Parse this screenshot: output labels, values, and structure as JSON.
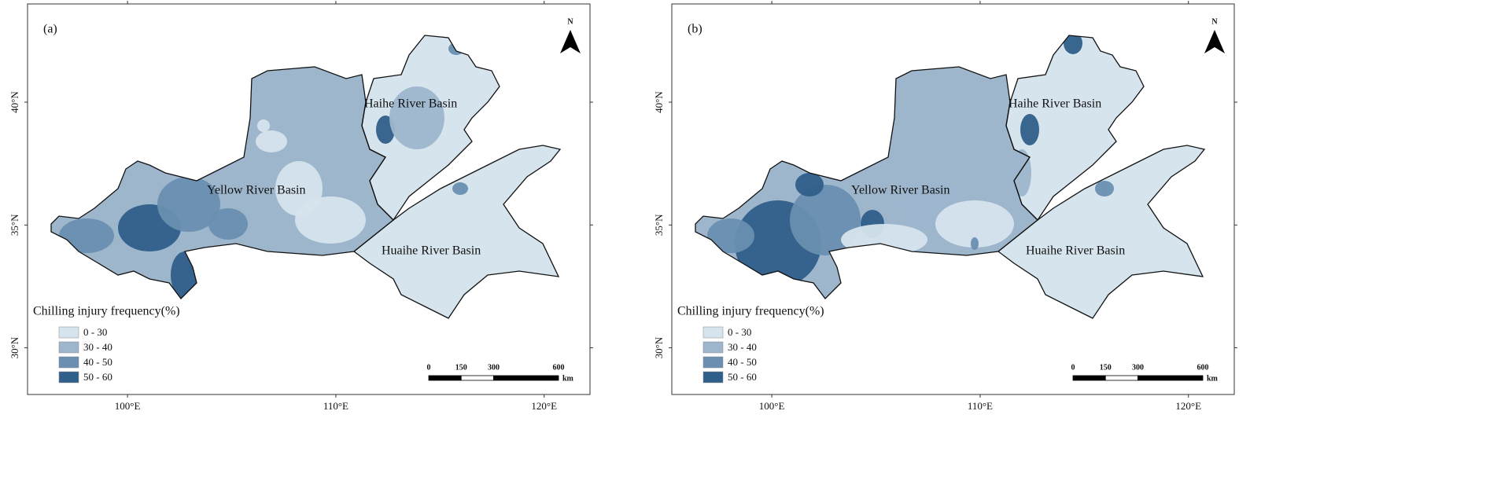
{
  "panels": [
    {
      "label": "(a)",
      "north": "N",
      "regions": [
        {
          "name": "Yellow River Basin"
        },
        {
          "name": "Haihe River Basin"
        },
        {
          "name": "Huaihe River Basin"
        }
      ],
      "legend": {
        "title": "Chilling injury frequency(%)",
        "items": [
          {
            "label": "0 - 30",
            "color": "#d6e4ed"
          },
          {
            "label": "30 - 40",
            "color": "#9db6cc"
          },
          {
            "label": "40 - 50",
            "color": "#6a8fb0"
          },
          {
            "label": "50 - 60",
            "color": "#2f5f8a"
          }
        ]
      },
      "scale": {
        "ticks": [
          0,
          150,
          300,
          600
        ],
        "unit": "km"
      },
      "xlim": [
        95.2,
        122.2
      ],
      "ylim": [
        28.1,
        44
      ],
      "lat_ticks": [
        {
          "value": 40,
          "label": "40°N"
        },
        {
          "value": 35,
          "label": "35°N"
        },
        {
          "value": 30,
          "label": "30°N"
        }
      ],
      "lon_ticks": [
        {
          "value": 100,
          "label": "100°E"
        },
        {
          "value": 110,
          "label": "110°E"
        },
        {
          "value": 120,
          "label": "120°E"
        }
      ]
    },
    {
      "label": "(b)",
      "north": "N",
      "regions": [
        {
          "name": "Yellow River Basin"
        },
        {
          "name": "Haihe River Basin"
        },
        {
          "name": "Huaihe River Basin"
        }
      ],
      "legend": {
        "title": "Chilling injury frequency(%)",
        "items": [
          {
            "label": "0 - 30",
            "color": "#d6e4ed"
          },
          {
            "label": "30 - 40",
            "color": "#9db6cc"
          },
          {
            "label": "40 - 50",
            "color": "#6a8fb0"
          },
          {
            "label": "50 - 60",
            "color": "#2f5f8a"
          }
        ]
      },
      "scale": {
        "ticks": [
          0,
          150,
          300,
          600
        ],
        "unit": "km"
      },
      "xlim": [
        95.2,
        122.2
      ],
      "ylim": [
        28.1,
        44
      ],
      "lat_ticks": [
        {
          "value": 40,
          "label": "40°N"
        },
        {
          "value": 35,
          "label": "35°N"
        },
        {
          "value": 30,
          "label": "30°N"
        }
      ],
      "lon_ticks": [
        {
          "value": 100,
          "label": "100°E"
        },
        {
          "value": 110,
          "label": "110°E"
        },
        {
          "value": 120,
          "label": "120°E"
        }
      ]
    }
  ]
}
